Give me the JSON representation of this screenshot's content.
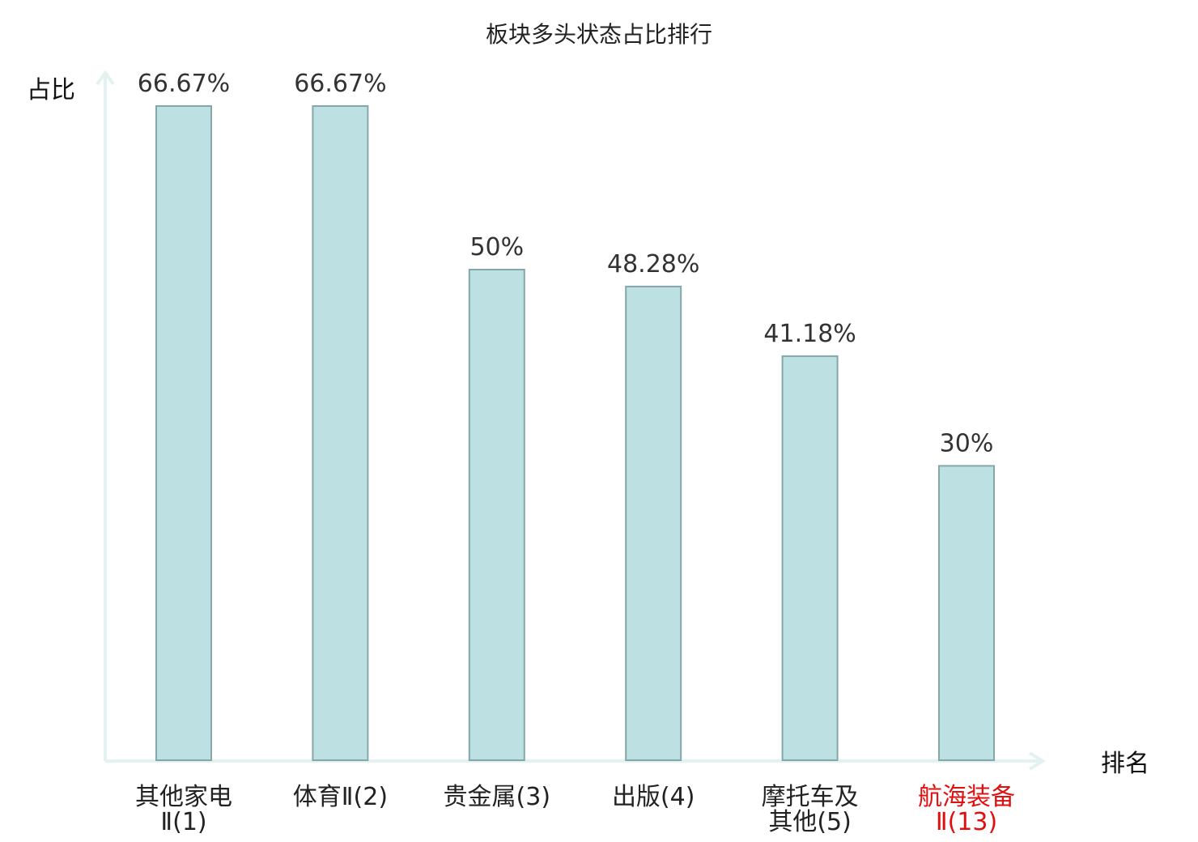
{
  "chart_data": {
    "type": "bar",
    "title": "板块多头状态占比排行",
    "xlabel": "排名",
    "ylabel": "占比",
    "categories": [
      {
        "lines": [
          "其他家电",
          "Ⅱ(1)"
        ],
        "highlight": false
      },
      {
        "lines": [
          "体育Ⅱ(2)"
        ],
        "highlight": false
      },
      {
        "lines": [
          "贵金属(3)"
        ],
        "highlight": false
      },
      {
        "lines": [
          "出版(4)"
        ],
        "highlight": false
      },
      {
        "lines": [
          "摩托车及",
          "其他(5)"
        ],
        "highlight": false
      },
      {
        "lines": [
          "航海装备",
          "Ⅱ(13)"
        ],
        "highlight": true
      }
    ],
    "values": [
      66.67,
      66.67,
      50,
      48.28,
      41.18,
      30
    ],
    "value_labels": [
      "66.67%",
      "66.67%",
      "50%",
      "48.28%",
      "41.18%",
      "30%"
    ],
    "ylim": [
      0,
      66.67
    ],
    "grid": false,
    "colors": {
      "bar_fill": "#bde0e3",
      "bar_stroke": "#85a7aa",
      "axis": "#e3f2f0",
      "label_normal": "#222222",
      "label_highlight": "#e01010"
    }
  }
}
